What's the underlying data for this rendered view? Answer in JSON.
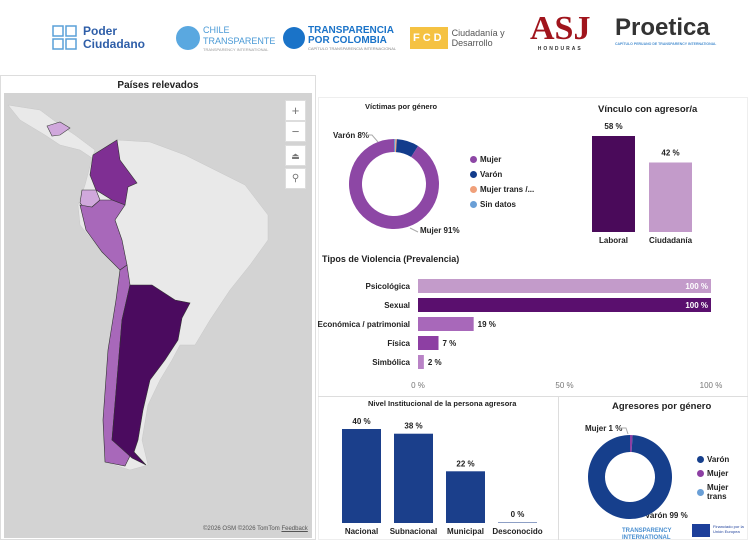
{
  "logos": [
    {
      "name": "poder-ciudadano",
      "text": "Poder Ciudadano",
      "color": "#2e5ea8"
    },
    {
      "name": "chile-transparente",
      "text": "CHILE TRANSPARENTE",
      "sub": "TRANSPARENCY INTERNATIONAL",
      "color": "#4a9ad6"
    },
    {
      "name": "transparencia-por-colombia",
      "text": "TRANSPARENCIA POR COLOMBIA",
      "sub": "CAPÍTULO TRANSPARENCIA INTERNACIONAL",
      "color": "#1a73c8"
    },
    {
      "name": "fcd",
      "text": "FCD",
      "sub": "Ciudadanía y Desarrollo",
      "color": "#f5c242"
    },
    {
      "name": "asj",
      "text": "ASJ",
      "sub": "HONDURAS",
      "color": "#a0141c"
    },
    {
      "name": "proetica",
      "text": "Proetica",
      "sub": "CAPÍTULO PERUANO DE TRANSPARENCY INTERNATIONAL",
      "color": "#333"
    }
  ],
  "map": {
    "title": "Países relevados",
    "credit": "©2026 OSM ©2026 TomTom",
    "feedback": "Feedback",
    "controls": [
      "+",
      "−",
      "⏏",
      "⚲"
    ],
    "colors": {
      "land": "#e9e9e9",
      "sea": "#d3d3d3",
      "argentina": "#4b0b5f",
      "colombia": "#7f2f93",
      "peru_chile": "#a868ba",
      "ecuador_honduras": "#d0a8dc"
    }
  },
  "victimas": {
    "title": "Víctimas por género",
    "labels": [
      "Varón 8%",
      "Mujer 91%"
    ],
    "chart_data": {
      "type": "pie",
      "slices": [
        {
          "name": "Mujer",
          "value": 91,
          "color": "#8d47a5"
        },
        {
          "name": "Varón",
          "value": 8,
          "color": "#133c8c"
        },
        {
          "name": "Mujer trans /...",
          "value": 0.5,
          "color": "#f0a07a"
        },
        {
          "name": "Sin datos",
          "value": 0.5,
          "color": "#6a9fd6"
        }
      ]
    }
  },
  "vinculo": {
    "title": "Vínculo con agresor/a",
    "chart_data": {
      "type": "bar",
      "categories": [
        "Laboral",
        "Ciudadanía"
      ],
      "values": [
        58,
        42
      ],
      "labels": [
        "58 %",
        "42 %"
      ],
      "colors": [
        "#4a0a5a",
        "#c39bca"
      ]
    }
  },
  "tipos": {
    "title": "Tipos de Violencia (Prevalencia)",
    "chart_data": {
      "type": "bar",
      "orientation": "horizontal",
      "categories": [
        "Psicológica",
        "Sexual",
        "Económica / patrimonial",
        "Física",
        "Simbólica"
      ],
      "values": [
        100,
        100,
        19,
        7,
        2
      ],
      "labels": [
        "100 %",
        "100 %",
        "19 %",
        "7 %",
        "2 %"
      ],
      "colors": [
        "#c39bca",
        "#5a0f6e",
        "#a868ba",
        "#8d3fa3",
        "#b983c6"
      ],
      "xticks": [
        "0 %",
        "50 %",
        "100 %"
      ],
      "xlim": [
        0,
        100
      ]
    }
  },
  "nivel": {
    "title": "Nivel Institucional de la persona agresora",
    "chart_data": {
      "type": "bar",
      "categories": [
        "Nacional",
        "Subnacional",
        "Municipal",
        "Desconocido"
      ],
      "values": [
        40,
        38,
        22,
        0
      ],
      "labels": [
        "40 %",
        "38 %",
        "22 %",
        "0 %"
      ],
      "color": "#1b3f8b"
    }
  },
  "agresores": {
    "title": "Agresores por género",
    "labels": [
      "Mujer 1 %",
      "Varón 99 %"
    ],
    "chart_data": {
      "type": "pie",
      "slices": [
        {
          "name": "Varón",
          "value": 99,
          "color": "#163f8c"
        },
        {
          "name": "Mujer",
          "value": 1,
          "color": "#8d3fa3"
        },
        {
          "name": "Mujer trans",
          "value": 0,
          "color": "#6a9fd6"
        }
      ]
    }
  },
  "footer": {
    "ti": "TRANSPARENCY INTERNATIONAL",
    "eu": "Financiado por la Unión Europea"
  }
}
